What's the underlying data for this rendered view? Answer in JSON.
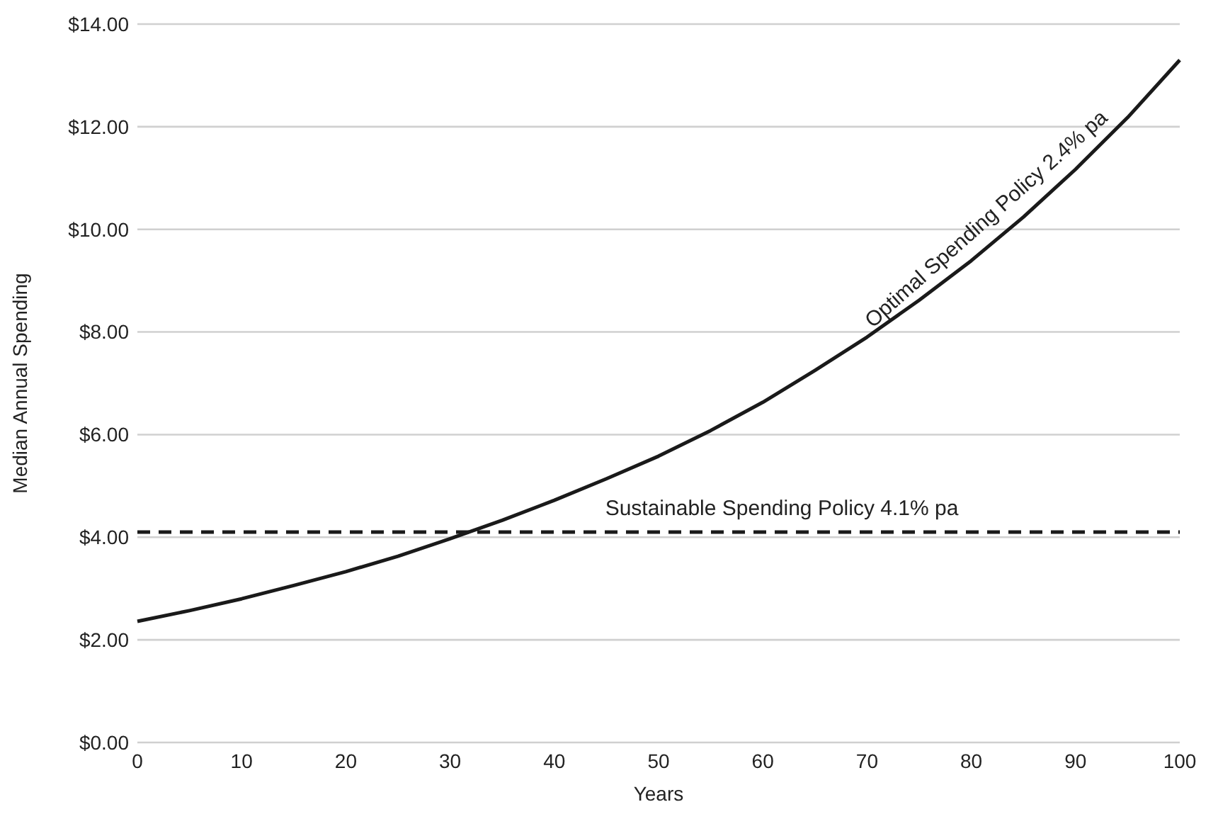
{
  "chart_data": {
    "type": "line",
    "xlabel": "Years",
    "ylabel": "Median Annual Spending",
    "x": [
      0,
      5,
      10,
      15,
      20,
      25,
      30,
      35,
      40,
      45,
      50,
      55,
      60,
      65,
      70,
      75,
      80,
      85,
      90,
      95,
      100
    ],
    "series": [
      {
        "name": "Optimal Spending Policy 2.4% pa",
        "color": "#1a1a1a",
        "values": [
          2.36,
          2.57,
          2.8,
          3.06,
          3.33,
          3.63,
          3.97,
          4.33,
          4.72,
          5.14,
          5.58,
          6.08,
          6.63,
          7.25,
          7.9,
          8.62,
          9.39,
          10.24,
          11.17,
          12.18,
          13.3
        ]
      }
    ],
    "ref_lines": [
      {
        "axis": "y",
        "value": 4.1,
        "label": "Sustainable Spending Policy 4.1% pa",
        "color": "#1a1a1a",
        "line_style": "dashed"
      }
    ],
    "xlim": [
      0,
      100
    ],
    "xticks": [
      0,
      10,
      20,
      30,
      40,
      50,
      60,
      70,
      80,
      90,
      100
    ],
    "ylim": [
      0,
      14
    ],
    "yticks": [
      {
        "value": 0,
        "label": "$0.00"
      },
      {
        "value": 2,
        "label": "$2.00"
      },
      {
        "value": 4,
        "label": "$4.00"
      },
      {
        "value": 6,
        "label": "$6.00"
      },
      {
        "value": 8,
        "label": "$8.00"
      },
      {
        "value": 10,
        "label": "$10.00"
      },
      {
        "value": 12,
        "label": "$12.00"
      },
      {
        "value": 14,
        "label": "$14.00"
      }
    ],
    "grid": "y",
    "marker": "none",
    "line_style": "solid"
  }
}
